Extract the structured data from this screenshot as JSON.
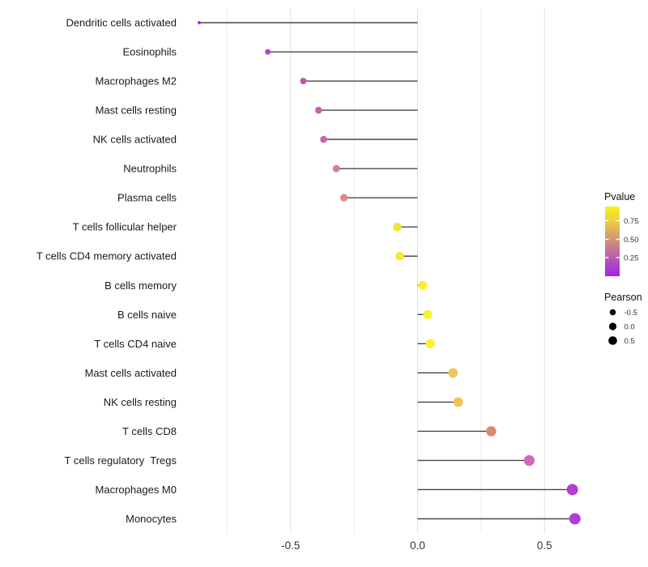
{
  "chart_data": {
    "type": "lollipop",
    "orientation": "horizontal",
    "title": "",
    "xlabel": "",
    "ylabel": "",
    "baseline_x": 0,
    "x_axis": {
      "range": [
        -0.93,
        0.69
      ],
      "ticks": [
        {
          "value": -0.5,
          "label": "-0.5"
        },
        {
          "value": 0.0,
          "label": "0.0"
        },
        {
          "value": 0.5,
          "label": "0.5"
        }
      ],
      "minor_gridlines": [
        -0.75,
        -0.25,
        0.25
      ]
    },
    "points": [
      {
        "label": "Dendritic cells activated",
        "pearson": -0.86,
        "pvalue_est": 0.02,
        "color": "#A02BE8"
      },
      {
        "label": "Eosinophils",
        "pearson": -0.59,
        "pvalue_est": 0.15,
        "color": "#B644D2"
      },
      {
        "label": "Macrophages M2",
        "pearson": -0.45,
        "pvalue_est": 0.28,
        "color": "#C355AE"
      },
      {
        "label": "Mast cells resting",
        "pearson": -0.39,
        "pvalue_est": 0.33,
        "color": "#C763A9"
      },
      {
        "label": "NK cells activated",
        "pearson": -0.37,
        "pvalue_est": 0.37,
        "color": "#CA6AA6"
      },
      {
        "label": "Neutrophils",
        "pearson": -0.32,
        "pvalue_est": 0.43,
        "color": "#D5838B"
      },
      {
        "label": "Plasma cells",
        "pearson": -0.29,
        "pvalue_est": 0.47,
        "color": "#D98C7E"
      },
      {
        "label": "T cells follicular helper",
        "pearson": -0.08,
        "pvalue_est": 0.85,
        "color": "#F2E432"
      },
      {
        "label": "T cells CD4 memory activated",
        "pearson": -0.07,
        "pvalue_est": 0.88,
        "color": "#F4E92C"
      },
      {
        "label": "B cells memory",
        "pearson": 0.02,
        "pvalue_est": 0.92,
        "color": "#FAEF2E"
      },
      {
        "label": "B cells naive",
        "pearson": 0.04,
        "pvalue_est": 0.93,
        "color": "#FBF12C"
      },
      {
        "label": "T cells CD4 naive",
        "pearson": 0.05,
        "pvalue_est": 0.92,
        "color": "#FAF02D"
      },
      {
        "label": "Mast cells activated",
        "pearson": 0.14,
        "pvalue_est": 0.7,
        "color": "#EEC45B"
      },
      {
        "label": "NK cells resting",
        "pearson": 0.16,
        "pvalue_est": 0.7,
        "color": "#EFC454"
      },
      {
        "label": "T cells CD8",
        "pearson": 0.29,
        "pvalue_est": 0.5,
        "color": "#DD8A75"
      },
      {
        "label": "T cells regulatory  Tregs",
        "pearson": 0.44,
        "pvalue_est": 0.31,
        "color": "#D169BB"
      },
      {
        "label": "Macrophages M0",
        "pearson": 0.61,
        "pvalue_est": 0.12,
        "color": "#B03FD4"
      },
      {
        "label": "Monocytes",
        "pearson": 0.62,
        "pvalue_est": 0.11,
        "color": "#AF3ED6"
      }
    ],
    "legend_pvalue": {
      "title": "Pvalue",
      "ticks": [
        "0.75",
        "0.50",
        "0.25"
      ],
      "tick_fracs_from_bottom": [
        0.797,
        0.529,
        0.267
      ],
      "gradient_bottom_to_top": [
        {
          "offset": 0,
          "color": "#A322EE"
        },
        {
          "offset": 0.26,
          "color": "#B85AB3"
        },
        {
          "offset": 0.52,
          "color": "#D09377"
        },
        {
          "offset": 0.78,
          "color": "#EACB45"
        },
        {
          "offset": 1,
          "color": "#FAF118"
        }
      ]
    },
    "legend_pearson": {
      "title": "Pearson",
      "dot_color": "#000000",
      "entries": [
        {
          "label": "-0.5",
          "diameter": 7.5
        },
        {
          "label": "0.0",
          "diameter": 9.2
        },
        {
          "label": "0.5",
          "diameter": 10.6
        }
      ]
    },
    "style_colors": {
      "stem": "#474747",
      "gridline_major": "#e2e2e2",
      "gridline_minor": "#ececec",
      "category_text": "#1a1a1a",
      "axis_text": "#333333"
    }
  }
}
